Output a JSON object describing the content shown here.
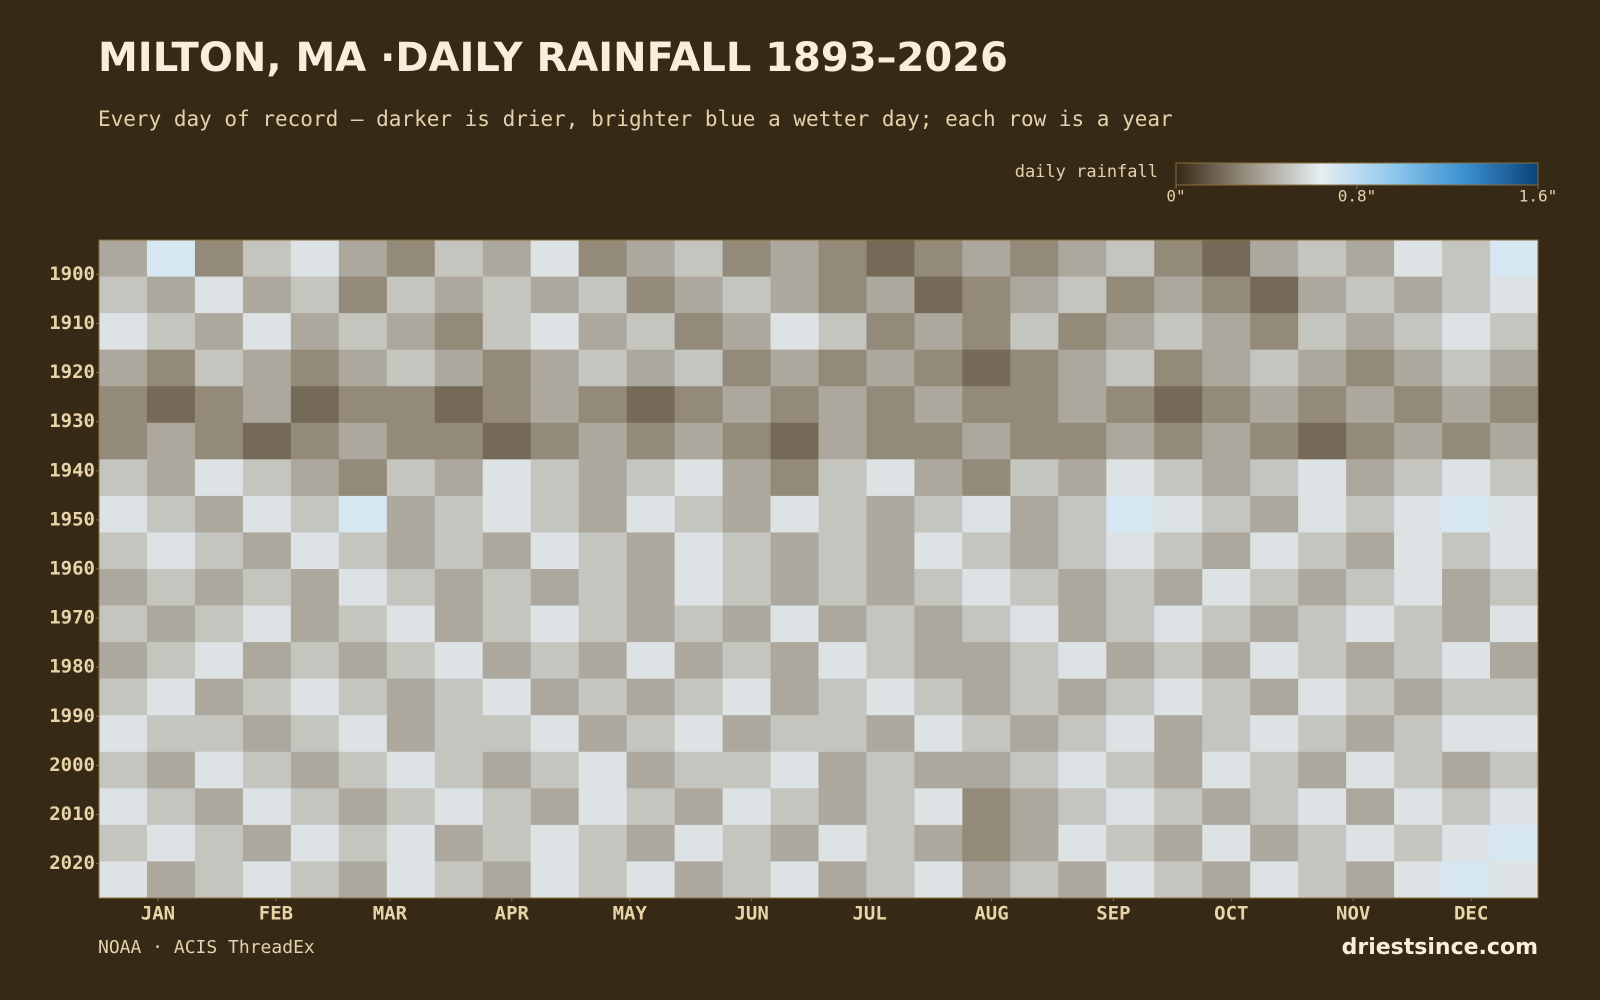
{
  "chart_data": {
    "type": "heatmap",
    "title": "MILTON, MA ·DAILY RAINFALL 1893–2026",
    "subtitle": "Every day of record — darker is drier, brighter blue a wetter day; each row is a year",
    "colorbar_label": "daily rainfall",
    "clim": [
      0,
      1.6
    ],
    "cticks": [
      {
        "value": 0,
        "label": "0\""
      },
      {
        "value": 0.8,
        "label": "0.8\""
      },
      {
        "value": 1.6,
        "label": "1.6\""
      }
    ],
    "colorscale": [
      "#362a16",
      "#9a9080",
      "#e6eef2",
      "#8fc8ec",
      "#3a8fd0",
      "#0b4275"
    ],
    "xlim": [
      1,
      367
    ],
    "xticks": [
      {
        "value": 16,
        "label": "JAN"
      },
      {
        "value": 46,
        "label": "FEB"
      },
      {
        "value": 75,
        "label": "MAR"
      },
      {
        "value": 106,
        "label": "APR"
      },
      {
        "value": 136,
        "label": "MAY"
      },
      {
        "value": 167,
        "label": "JUN"
      },
      {
        "value": 197,
        "label": "JUL"
      },
      {
        "value": 228,
        "label": "AUG"
      },
      {
        "value": 259,
        "label": "SEP"
      },
      {
        "value": 289,
        "label": "OCT"
      },
      {
        "value": 320,
        "label": "NOV"
      },
      {
        "value": 350,
        "label": "DEC"
      }
    ],
    "ylim": [
      1893,
      2027
    ],
    "yticks": [
      1900,
      1910,
      1920,
      1930,
      1940,
      1950,
      1960,
      1970,
      1980,
      1990,
      2000,
      2010,
      2020
    ],
    "values": [
      [
        0.4,
        0.7,
        0.3,
        0.5,
        0.6,
        0.4,
        0.3,
        0.5,
        0.4,
        0.6,
        0.3,
        0.4,
        0.5,
        0.3,
        0.4,
        0.3,
        0.2,
        0.3,
        0.4,
        0.3,
        0.4,
        0.5,
        0.3,
        0.2,
        0.4,
        0.5,
        0.4,
        0.6,
        0.5,
        0.7
      ],
      [
        0.5,
        0.4,
        0.6,
        0.4,
        0.5,
        0.3,
        0.5,
        0.4,
        0.5,
        0.4,
        0.5,
        0.3,
        0.4,
        0.5,
        0.4,
        0.3,
        0.4,
        0.2,
        0.3,
        0.4,
        0.5,
        0.3,
        0.4,
        0.3,
        0.2,
        0.4,
        0.5,
        0.4,
        0.5,
        0.6
      ],
      [
        0.6,
        0.5,
        0.4,
        0.6,
        0.4,
        0.5,
        0.4,
        0.3,
        0.5,
        0.6,
        0.4,
        0.5,
        0.3,
        0.4,
        0.6,
        0.5,
        0.3,
        0.4,
        0.3,
        0.5,
        0.3,
        0.4,
        0.5,
        0.4,
        0.3,
        0.5,
        0.4,
        0.5,
        0.6,
        0.5
      ],
      [
        0.4,
        0.3,
        0.5,
        0.4,
        0.3,
        0.4,
        0.5,
        0.4,
        0.3,
        0.4,
        0.5,
        0.4,
        0.5,
        0.3,
        0.4,
        0.3,
        0.4,
        0.3,
        0.2,
        0.3,
        0.4,
        0.5,
        0.3,
        0.4,
        0.5,
        0.4,
        0.3,
        0.4,
        0.5,
        0.4
      ],
      [
        0.3,
        0.2,
        0.3,
        0.4,
        0.2,
        0.3,
        0.3,
        0.2,
        0.3,
        0.4,
        0.3,
        0.2,
        0.3,
        0.4,
        0.3,
        0.4,
        0.3,
        0.4,
        0.3,
        0.3,
        0.4,
        0.3,
        0.2,
        0.3,
        0.4,
        0.3,
        0.4,
        0.3,
        0.4,
        0.3
      ],
      [
        0.3,
        0.4,
        0.3,
        0.2,
        0.3,
        0.4,
        0.3,
        0.3,
        0.2,
        0.3,
        0.4,
        0.3,
        0.4,
        0.3,
        0.2,
        0.4,
        0.3,
        0.3,
        0.4,
        0.3,
        0.3,
        0.4,
        0.3,
        0.4,
        0.3,
        0.2,
        0.3,
        0.4,
        0.3,
        0.4
      ],
      [
        0.5,
        0.4,
        0.6,
        0.5,
        0.4,
        0.3,
        0.5,
        0.4,
        0.6,
        0.5,
        0.4,
        0.5,
        0.6,
        0.4,
        0.3,
        0.5,
        0.6,
        0.4,
        0.3,
        0.5,
        0.4,
        0.6,
        0.5,
        0.4,
        0.5,
        0.6,
        0.4,
        0.5,
        0.6,
        0.5
      ],
      [
        0.6,
        0.5,
        0.4,
        0.6,
        0.5,
        0.7,
        0.4,
        0.5,
        0.6,
        0.5,
        0.4,
        0.6,
        0.5,
        0.4,
        0.6,
        0.5,
        0.4,
        0.5,
        0.6,
        0.4,
        0.5,
        0.7,
        0.6,
        0.5,
        0.4,
        0.6,
        0.5,
        0.6,
        0.7,
        0.6
      ],
      [
        0.5,
        0.6,
        0.5,
        0.4,
        0.6,
        0.5,
        0.4,
        0.5,
        0.4,
        0.6,
        0.5,
        0.4,
        0.6,
        0.5,
        0.4,
        0.5,
        0.4,
        0.6,
        0.5,
        0.4,
        0.5,
        0.6,
        0.5,
        0.4,
        0.6,
        0.5,
        0.4,
        0.6,
        0.5,
        0.6
      ],
      [
        0.4,
        0.5,
        0.4,
        0.5,
        0.4,
        0.6,
        0.5,
        0.4,
        0.5,
        0.4,
        0.5,
        0.4,
        0.6,
        0.5,
        0.4,
        0.5,
        0.4,
        0.5,
        0.6,
        0.5,
        0.4,
        0.5,
        0.4,
        0.6,
        0.5,
        0.4,
        0.5,
        0.6,
        0.4,
        0.5
      ],
      [
        0.5,
        0.4,
        0.5,
        0.6,
        0.4,
        0.5,
        0.6,
        0.4,
        0.5,
        0.6,
        0.5,
        0.4,
        0.5,
        0.4,
        0.6,
        0.4,
        0.5,
        0.4,
        0.5,
        0.6,
        0.4,
        0.5,
        0.6,
        0.5,
        0.4,
        0.5,
        0.6,
        0.5,
        0.4,
        0.6
      ],
      [
        0.4,
        0.5,
        0.6,
        0.4,
        0.5,
        0.4,
        0.5,
        0.6,
        0.4,
        0.5,
        0.4,
        0.6,
        0.4,
        0.5,
        0.4,
        0.6,
        0.5,
        0.4,
        0.4,
        0.5,
        0.6,
        0.4,
        0.5,
        0.4,
        0.6,
        0.5,
        0.4,
        0.5,
        0.6,
        0.4
      ],
      [
        0.5,
        0.6,
        0.4,
        0.5,
        0.6,
        0.5,
        0.4,
        0.5,
        0.6,
        0.4,
        0.5,
        0.4,
        0.5,
        0.6,
        0.4,
        0.5,
        0.6,
        0.5,
        0.4,
        0.5,
        0.4,
        0.5,
        0.6,
        0.5,
        0.4,
        0.6,
        0.5,
        0.4,
        0.5,
        0.5
      ],
      [
        0.6,
        0.5,
        0.5,
        0.4,
        0.5,
        0.6,
        0.4,
        0.5,
        0.5,
        0.6,
        0.4,
        0.5,
        0.6,
        0.4,
        0.5,
        0.5,
        0.4,
        0.6,
        0.5,
        0.4,
        0.5,
        0.6,
        0.4,
        0.5,
        0.6,
        0.5,
        0.4,
        0.5,
        0.6,
        0.6
      ],
      [
        0.5,
        0.4,
        0.6,
        0.5,
        0.4,
        0.5,
        0.6,
        0.5,
        0.4,
        0.5,
        0.6,
        0.4,
        0.5,
        0.5,
        0.6,
        0.4,
        0.5,
        0.4,
        0.4,
        0.5,
        0.6,
        0.5,
        0.4,
        0.6,
        0.5,
        0.4,
        0.6,
        0.5,
        0.4,
        0.5
      ],
      [
        0.6,
        0.5,
        0.4,
        0.6,
        0.5,
        0.4,
        0.5,
        0.6,
        0.5,
        0.4,
        0.6,
        0.5,
        0.4,
        0.6,
        0.5,
        0.4,
        0.5,
        0.6,
        0.3,
        0.4,
        0.5,
        0.6,
        0.5,
        0.4,
        0.5,
        0.6,
        0.4,
        0.6,
        0.5,
        0.6
      ],
      [
        0.5,
        0.6,
        0.5,
        0.4,
        0.6,
        0.5,
        0.6,
        0.4,
        0.5,
        0.6,
        0.5,
        0.4,
        0.6,
        0.5,
        0.4,
        0.6,
        0.5,
        0.4,
        0.3,
        0.4,
        0.6,
        0.5,
        0.4,
        0.6,
        0.4,
        0.5,
        0.6,
        0.5,
        0.6,
        0.7
      ],
      [
        0.6,
        0.4,
        0.5,
        0.6,
        0.5,
        0.4,
        0.6,
        0.5,
        0.4,
        0.6,
        0.5,
        0.6,
        0.4,
        0.5,
        0.6,
        0.4,
        0.5,
        0.6,
        0.4,
        0.5,
        0.4,
        0.6,
        0.5,
        0.4,
        0.6,
        0.5,
        0.4,
        0.6,
        0.7,
        0.6
      ]
    ],
    "source": "NOAA · ACIS ThreadEx",
    "credit": "driestsince.com"
  }
}
